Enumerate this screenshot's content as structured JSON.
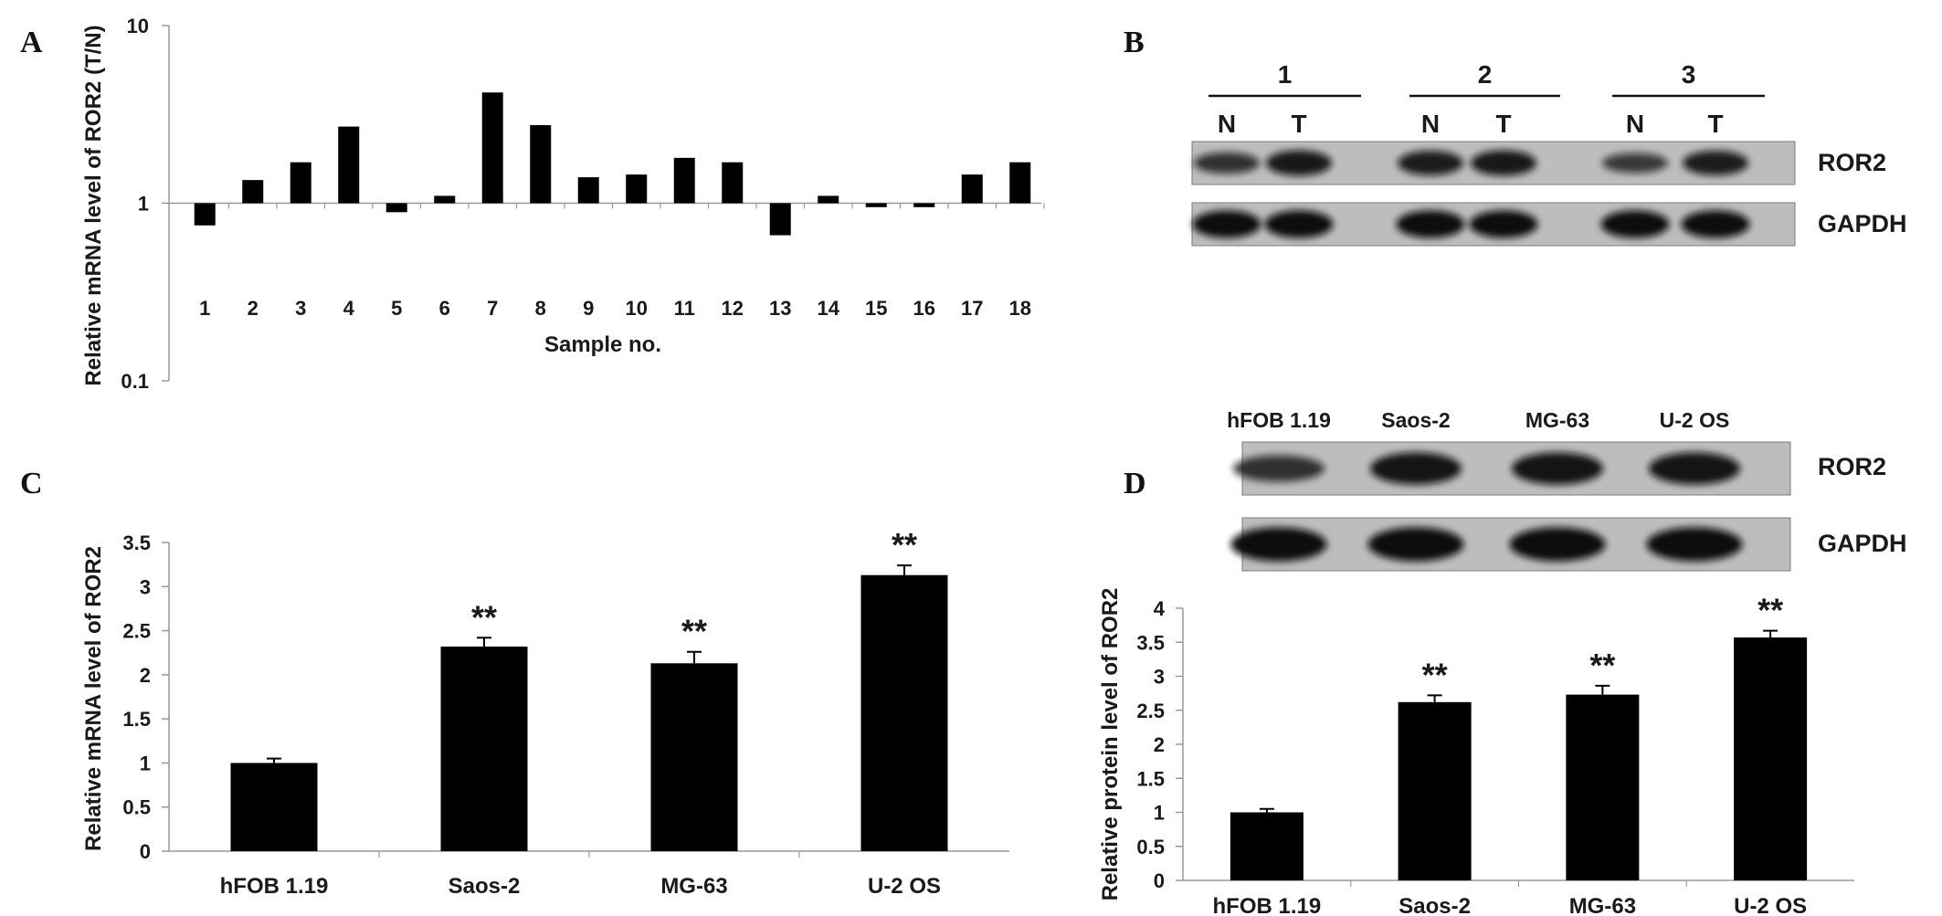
{
  "panels": {
    "A": "A",
    "B": "B",
    "C": "C",
    "D": "D"
  },
  "chart_data": [
    {
      "id": "A",
      "type": "bar",
      "scale": "log",
      "baseline": 1,
      "ylim": [
        0.1,
        10
      ],
      "yticks": [
        "0.1",
        "1",
        "10"
      ],
      "ylabel": "Relative mRNA level of ROR2 (T/N)",
      "xlabel": "Sample no.",
      "categories": [
        "1",
        "2",
        "3",
        "4",
        "5",
        "6",
        "7",
        "8",
        "9",
        "10",
        "11",
        "12",
        "13",
        "14",
        "15",
        "16",
        "17",
        "18"
      ],
      "values": [
        0.75,
        1.35,
        1.7,
        2.7,
        0.89,
        1.1,
        4.2,
        2.75,
        1.4,
        1.45,
        1.8,
        1.7,
        0.66,
        1.1,
        0.95,
        0.95,
        1.45,
        1.7
      ],
      "grid": false,
      "color": "#000000"
    },
    {
      "id": "C",
      "type": "bar",
      "ylim": [
        0,
        3.5
      ],
      "yticks": [
        "0",
        "0.5",
        "1",
        "1.5",
        "2",
        "2.5",
        "3",
        "3.5"
      ],
      "ylabel": "Relative mRNA level of ROR2",
      "xlabel": "",
      "categories": [
        "hFOB 1.19",
        "Saos-2",
        "MG-63",
        "U-2 OS"
      ],
      "values": [
        1.0,
        2.32,
        2.13,
        3.13
      ],
      "errors": [
        0.05,
        0.1,
        0.13,
        0.11
      ],
      "annotations": [
        "",
        "**",
        "**",
        "**"
      ],
      "grid": false,
      "color": "#000000"
    },
    {
      "id": "D",
      "type": "bar",
      "ylim": [
        0,
        4
      ],
      "yticks": [
        "0",
        "0.5",
        "1",
        "1.5",
        "2",
        "2.5",
        "3",
        "3.5",
        "4"
      ],
      "ylabel": "Relative protein level of ROR2",
      "xlabel": "",
      "categories": [
        "hFOB 1.19",
        "Saos-2",
        "MG-63",
        "U-2 OS"
      ],
      "values": [
        1.0,
        2.62,
        2.73,
        3.57
      ],
      "errors": [
        0.05,
        0.1,
        0.13,
        0.1
      ],
      "annotations": [
        "",
        "**",
        "**",
        "**"
      ],
      "grid": false,
      "color": "#000000"
    }
  ],
  "blots": {
    "B": {
      "groups": [
        "1",
        "2",
        "3"
      ],
      "lanes": [
        "N",
        "T",
        "N",
        "T",
        "N",
        "T"
      ],
      "rows": [
        "ROR2",
        "GAPDH"
      ],
      "band_intensity": {
        "ROR2": [
          0.55,
          0.85,
          0.8,
          0.85,
          0.45,
          0.8
        ],
        "GAPDH": [
          1,
          1,
          1,
          1,
          1,
          1
        ]
      }
    },
    "D": {
      "lanes": [
        "hFOB 1.19",
        "Saos-2",
        "MG-63",
        "U-2 OS"
      ],
      "rows": [
        "ROR2",
        "GAPDH"
      ],
      "band_intensity": {
        "ROR2": [
          0.55,
          0.9,
          0.9,
          0.9
        ],
        "GAPDH": [
          1,
          1,
          1,
          1
        ]
      }
    }
  }
}
